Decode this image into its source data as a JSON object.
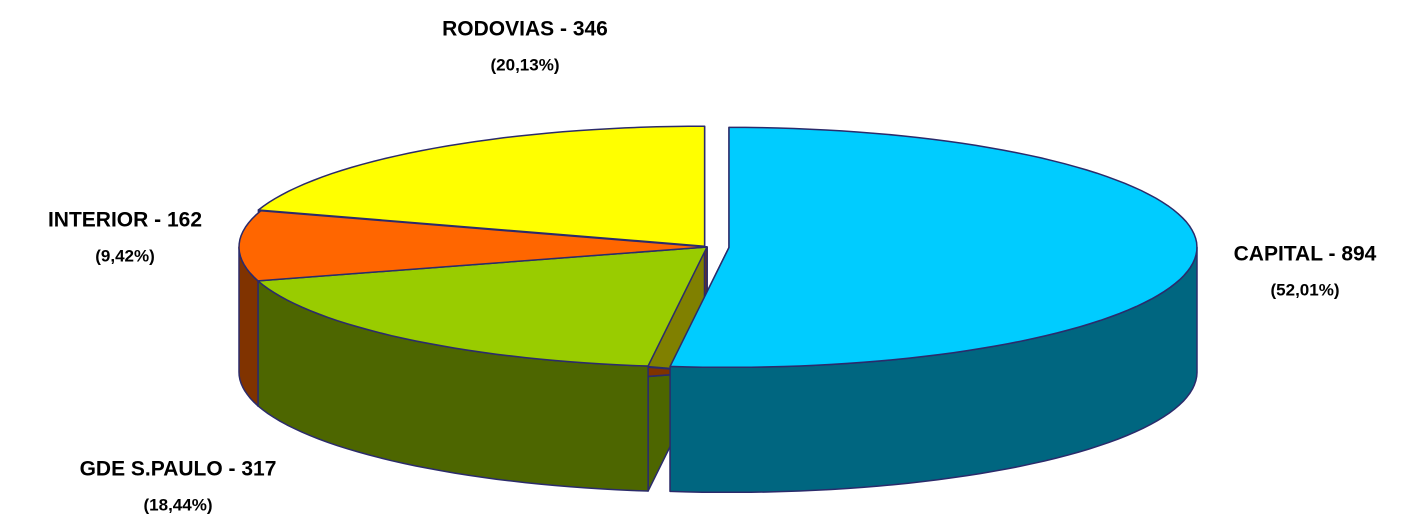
{
  "chart_data": {
    "type": "pie3d",
    "labels": [
      "CAPITAL - 894",
      "GDE S.PAULO - 317",
      "INTERIOR - 162",
      "RODOVIAS - 346"
    ],
    "values": [
      894,
      317,
      162,
      346
    ],
    "percents": [
      52.01,
      18.44,
      9.42,
      20.13
    ],
    "percent_labels": [
      "(52,01%)",
      "(18,44%)",
      "(9,42%)",
      "(20,13%)"
    ],
    "colors": [
      "#00ccff",
      "#99cc00",
      "#ff6600",
      "#ffff00"
    ]
  }
}
